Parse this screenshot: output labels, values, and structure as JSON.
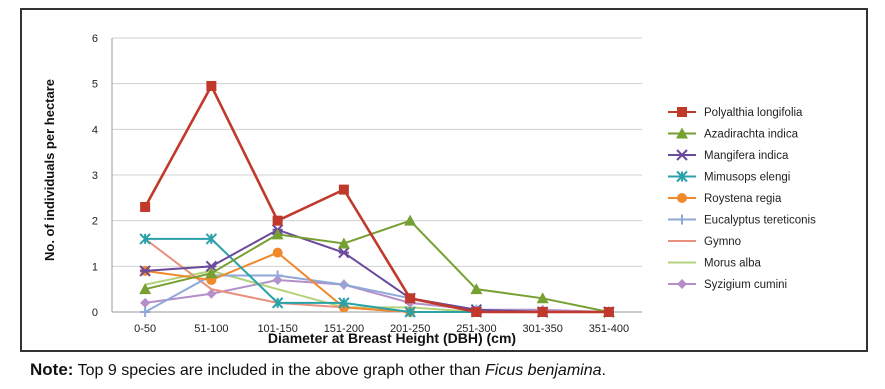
{
  "chart_data": {
    "type": "line",
    "title": "",
    "xlabel": "Diameter at Breast Height (DBH) (cm)",
    "ylabel": "No. of individuals per hectare",
    "ylim": [
      0,
      6
    ],
    "yticks": [
      0,
      1,
      2,
      3,
      4,
      5,
      6
    ],
    "grid": "horizontal",
    "legend": "right",
    "categories": [
      "0-50",
      "51-100",
      "101-150",
      "151-200",
      "201-250",
      "251-300",
      "301-350",
      "351-400"
    ],
    "series": [
      {
        "name": "Polyalthia longifolia",
        "color": "#c0392b",
        "marker": "square",
        "values": [
          2.3,
          4.95,
          2.0,
          2.68,
          0.3,
          0.0,
          0.0,
          0.0
        ]
      },
      {
        "name": "Azadirachta indica",
        "color": "#77a033",
        "marker": "triangle",
        "values": [
          0.5,
          0.85,
          1.7,
          1.5,
          2.0,
          0.5,
          0.3,
          0.0
        ]
      },
      {
        "name": "Mangifera indica",
        "color": "#6a4a9a",
        "marker": "xbar",
        "values": [
          0.9,
          1.0,
          1.8,
          1.3,
          0.3,
          0.05,
          0.0,
          0.0
        ]
      },
      {
        "name": "Mimusops elengi",
        "color": "#2aa1a8",
        "marker": "asterisk",
        "values": [
          1.6,
          1.6,
          0.2,
          0.2,
          0.0,
          0.0,
          0.0,
          0.0
        ]
      },
      {
        "name": "Roystena regia",
        "color": "#f0892c",
        "marker": "circle",
        "values": [
          0.9,
          0.7,
          1.3,
          0.1,
          0.0,
          0.0,
          0.0,
          0.0
        ]
      },
      {
        "name": "Eucalyptus tereticonis",
        "color": "#8fa8d8",
        "marker": "plus",
        "values": [
          0.0,
          0.8,
          0.8,
          0.6,
          0.3,
          0.05,
          0.0,
          0.0
        ]
      },
      {
        "name": "Gymno",
        "color": "#e8917e",
        "marker": "line",
        "values": [
          1.6,
          0.5,
          0.2,
          0.1,
          0.0,
          0.0,
          0.0,
          0.0
        ]
      },
      {
        "name": "Morus alba",
        "color": "#b4d17c",
        "marker": "line",
        "values": [
          0.6,
          0.9,
          0.5,
          0.1,
          0.1,
          0.0,
          0.0,
          0.0
        ]
      },
      {
        "name": "Syzigium cumini",
        "color": "#b58fc9",
        "marker": "diamond",
        "values": [
          0.2,
          0.4,
          0.7,
          0.6,
          0.2,
          0.05,
          0.05,
          0.0
        ]
      }
    ]
  },
  "note": {
    "label": "Note:",
    "text_before": " Top 9 species are included in the above graph other than ",
    "species": "Ficus benjamina",
    "text_after": "."
  }
}
